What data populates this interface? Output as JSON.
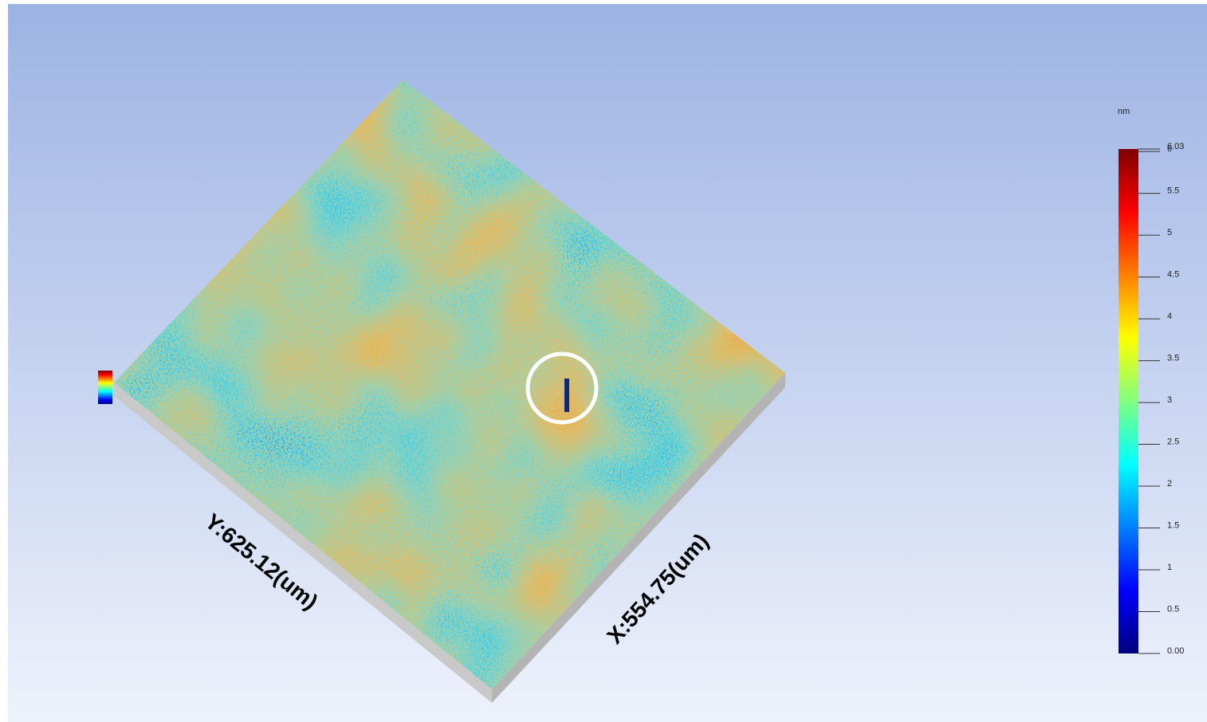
{
  "surface": {
    "x_label": "X:554.75(um)",
    "y_label": "Y:625.12(um)"
  },
  "colorbar": {
    "unit": "nm",
    "lim": [
      0,
      6.03
    ],
    "ticks": [
      {
        "value": 0,
        "label": "0.00"
      },
      0.5,
      1,
      1.5,
      2,
      2.5,
      3,
      3.5,
      4,
      4.5,
      5,
      5.5,
      6,
      {
        "value": 6.03,
        "label": "6.03"
      }
    ],
    "colors": [
      "#00007f",
      "#0000ff",
      "#0080ff",
      "#00ffff",
      "#80ff80",
      "#ffff00",
      "#ff8000",
      "#ff0000",
      "#7f0000"
    ]
  }
}
